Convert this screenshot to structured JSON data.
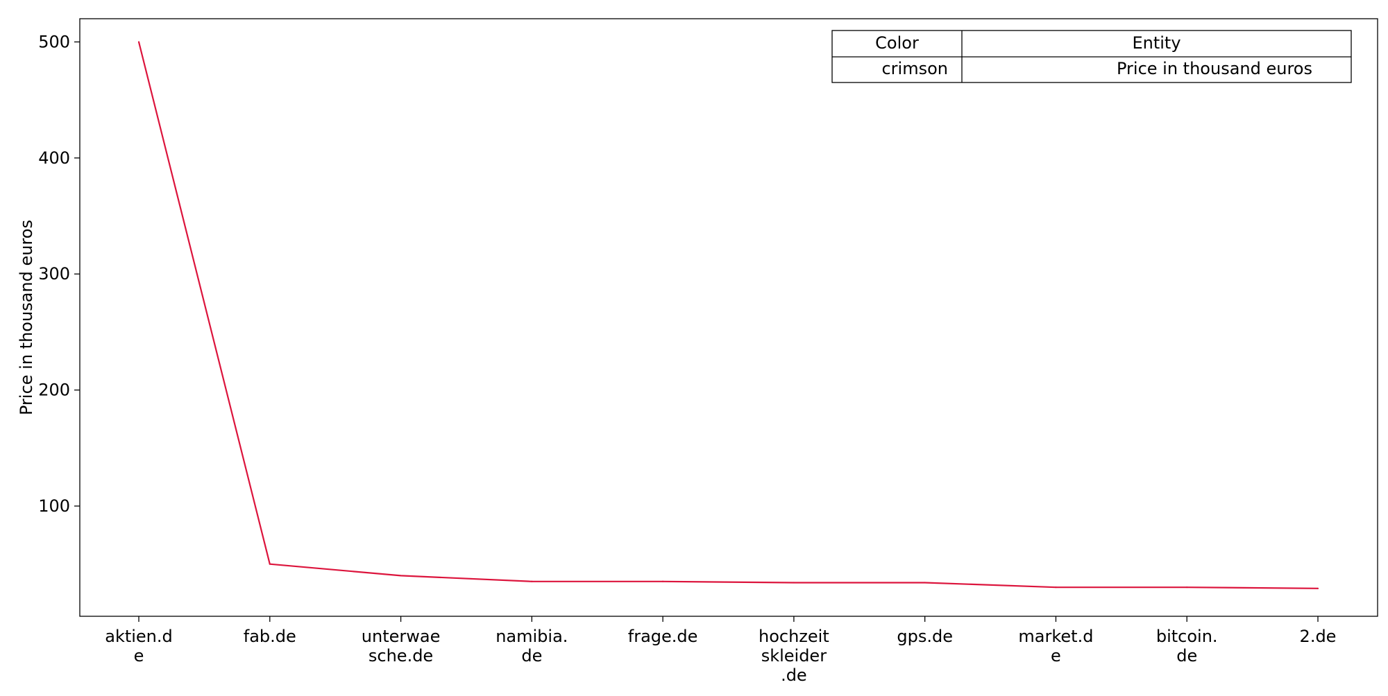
{
  "chart_data": {
    "type": "line",
    "title": "",
    "xlabel": "",
    "ylabel": "Price in thousand euros",
    "categories": [
      "aktien.de",
      "fab.de",
      "unterwaesche.de",
      "namibia.de",
      "frage.de",
      "hochzeitskleider.de",
      "gps.de",
      "market.de",
      "bitcoin.de",
      "2.de"
    ],
    "category_tick_lines": [
      [
        "aktien.d",
        "e"
      ],
      [
        "fab.de"
      ],
      [
        "unterwae",
        "sche.de"
      ],
      [
        "namibia.",
        "de"
      ],
      [
        "frage.de"
      ],
      [
        "hochzeit",
        "skleider",
        ".de"
      ],
      [
        "gps.de"
      ],
      [
        "market.d",
        "e"
      ],
      [
        "bitcoin.",
        "de"
      ],
      [
        "2.de"
      ]
    ],
    "series": [
      {
        "values": [
          500,
          50,
          40,
          35,
          35,
          34,
          34,
          30,
          30,
          29
        ],
        "color": "#dc143c"
      }
    ],
    "y_ticks": [
      "100",
      "200",
      "300",
      "400",
      "500"
    ],
    "ylim": [
      5,
      520
    ],
    "grid": false,
    "legend_table": {
      "placement": "top-right",
      "header": [
        "Color",
        "Entity"
      ],
      "rows": [
        [
          "crimson",
          "Price in thousand euros"
        ]
      ]
    }
  }
}
